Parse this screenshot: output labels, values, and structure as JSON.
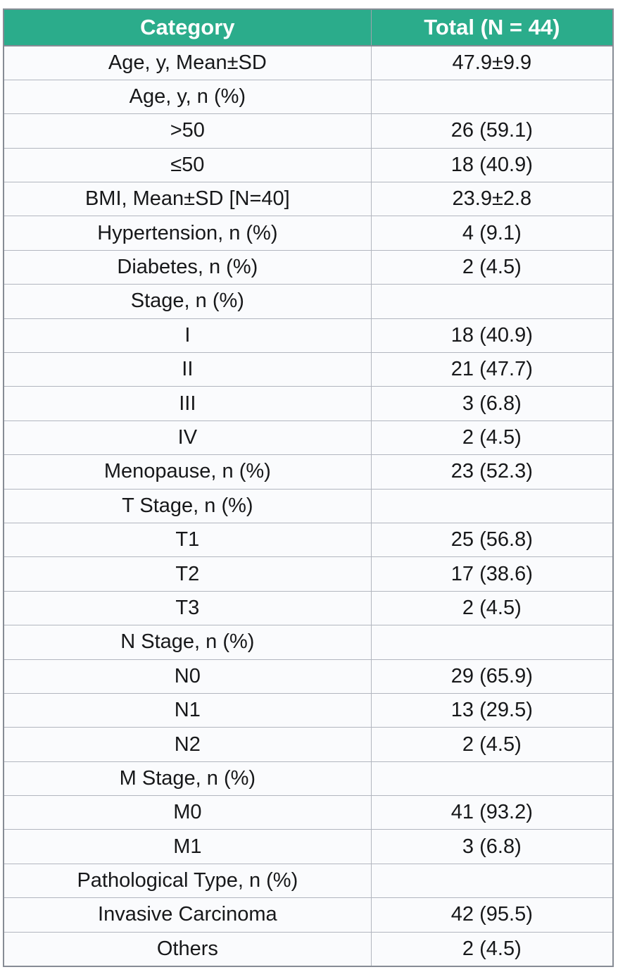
{
  "chart_data": {
    "type": "table",
    "columns": [
      "Category",
      "Total (N = 44)"
    ],
    "rows": [
      {
        "category": "Age, y, Mean±SD",
        "total": "47.9±9.9"
      },
      {
        "category": "Age, y, n (%)",
        "total": ""
      },
      {
        "category": ">50",
        "total": "26 (59.1)"
      },
      {
        "category": "≤50",
        "total": "18 (40.9)"
      },
      {
        "category": "BMI, Mean±SD [N=40]",
        "total": "23.9±2.8"
      },
      {
        "category": "Hypertension, n (%)",
        "total": "4 (9.1)"
      },
      {
        "category": "Diabetes, n (%)",
        "total": "2 (4.5)"
      },
      {
        "category": "Stage, n (%)",
        "total": ""
      },
      {
        "category": "I",
        "total": "18 (40.9)"
      },
      {
        "category": "II",
        "total": "21 (47.7)"
      },
      {
        "category": "III",
        "total": "3 (6.8)"
      },
      {
        "category": "IV",
        "total": "2 (4.5)"
      },
      {
        "category": "Menopause, n (%)",
        "total": "23 (52.3)"
      },
      {
        "category": "T Stage, n (%)",
        "total": ""
      },
      {
        "category": "T1",
        "total": "25 (56.8)"
      },
      {
        "category": "T2",
        "total": "17 (38.6)"
      },
      {
        "category": "T3",
        "total": "2 (4.5)"
      },
      {
        "category": "N Stage, n (%)",
        "total": ""
      },
      {
        "category": "N0",
        "total": "29 (65.9)"
      },
      {
        "category": "N1",
        "total": "13 (29.5)"
      },
      {
        "category": "N2",
        "total": "2 (4.5)"
      },
      {
        "category": "M Stage, n (%)",
        "total": ""
      },
      {
        "category": "M0",
        "total": "41 (93.2)"
      },
      {
        "category": "M1",
        "total": "3 (6.8)"
      },
      {
        "category": "Pathological Type, n (%)",
        "total": ""
      },
      {
        "category": "Invasive Carcinoma",
        "total": "42 (95.5)"
      },
      {
        "category": "Others",
        "total": "2 (4.5)"
      }
    ]
  },
  "colors": {
    "header_bg": "#2bac8b",
    "header_text": "#ffffff",
    "cell_bg": "#fafbfd",
    "body_text": "#17181a",
    "border_inner": "#b2b6bf",
    "border_outer": "#878c95"
  }
}
